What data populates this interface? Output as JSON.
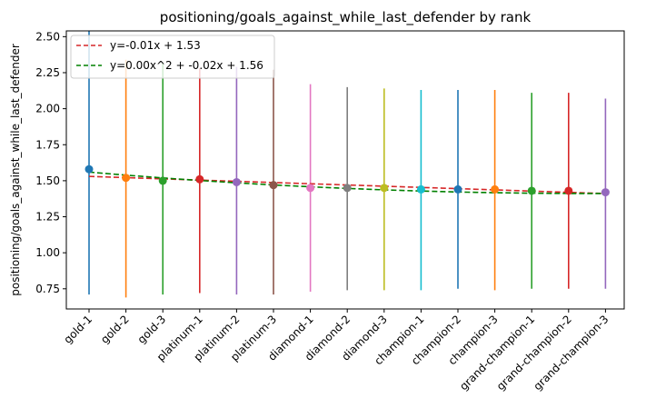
{
  "chart_data": {
    "type": "scatter",
    "title": "positioning/goals_against_while_last_defender by rank",
    "xlabel": "",
    "ylabel": "positioning/goals_against_while_last_defender",
    "ylim": [
      0.61,
      2.54
    ],
    "yticks": [
      0.75,
      1.0,
      1.25,
      1.5,
      1.75,
      2.0,
      2.25,
      2.5
    ],
    "ytick_labels": [
      "0.75",
      "1.00",
      "1.25",
      "1.50",
      "1.75",
      "2.00",
      "2.25",
      "2.50"
    ],
    "categories": [
      "gold-1",
      "gold-2",
      "gold-3",
      "platinum-1",
      "platinum-2",
      "platinum-3",
      "diamond-1",
      "diamond-2",
      "diamond-3",
      "champion-1",
      "champion-2",
      "champion-3",
      "grand-champion-1",
      "grand-champion-2",
      "grand-champion-3"
    ],
    "means": [
      1.58,
      1.52,
      1.5,
      1.51,
      1.49,
      1.47,
      1.45,
      1.45,
      1.45,
      1.44,
      1.44,
      1.44,
      1.43,
      1.43,
      1.42
    ],
    "err_low": [
      0.71,
      0.69,
      0.71,
      0.72,
      0.71,
      0.71,
      0.73,
      0.74,
      0.74,
      0.74,
      0.75,
      0.74,
      0.75,
      0.75,
      0.75
    ],
    "err_high": [
      2.54,
      2.34,
      2.32,
      2.28,
      2.29,
      2.27,
      2.17,
      2.15,
      2.14,
      2.13,
      2.13,
      2.13,
      2.11,
      2.11,
      2.07
    ],
    "point_colors": [
      "#1f77b4",
      "#ff7f0e",
      "#2ca02c",
      "#d62728",
      "#9467bd",
      "#8c564b",
      "#e377c2",
      "#7f7f7f",
      "#bcbd22",
      "#17becf",
      "#1f77b4",
      "#ff7f0e",
      "#2ca02c",
      "#d62728",
      "#9467bd"
    ],
    "grid": false,
    "legend_position": "top-left",
    "fits": [
      {
        "name": "y=-0.01x + 1.53",
        "color": "#d62728",
        "style": "dashed",
        "coef": [
          -0.0085,
          1.53
        ]
      },
      {
        "name": "y=0.00x^2 + -0.02x + 1.56",
        "color": "#008000",
        "style": "dashed",
        "coef": [
          0.0008,
          -0.0218,
          1.56
        ]
      }
    ]
  }
}
